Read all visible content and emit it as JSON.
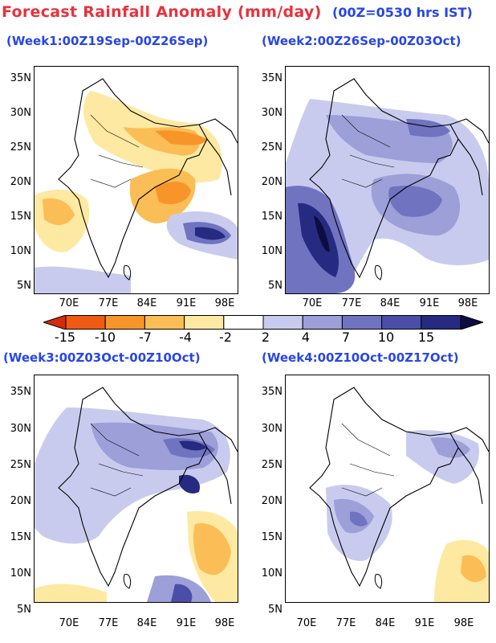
{
  "title": "Forecast Rainfall Anomaly (mm/day)",
  "subtitle": "(00Z=0530 hrs IST)",
  "lat_ticks": [
    "35N",
    "30N",
    "25N",
    "20N",
    "15N",
    "10N",
    "5N"
  ],
  "lon_ticks": [
    "70E",
    "77E",
    "84E",
    "91E",
    "98E"
  ],
  "panels": [
    {
      "id": "week1",
      "label": "(Week1:00Z19Sep-00Z26Sep)"
    },
    {
      "id": "week2",
      "label": "(Week2:00Z26Sep-00Z03Oct)"
    },
    {
      "id": "week3",
      "label": "(Week3:00Z03Oct-00Z10Oct)"
    },
    {
      "id": "week4",
      "label": "(Week4:00Z10Oct-00Z17Oct)"
    }
  ],
  "colorbar": {
    "labels": [
      "-15",
      "-10",
      "-7",
      "-4",
      "-2",
      "2",
      "4",
      "7",
      "10",
      "15"
    ],
    "colors": [
      "#d42a0e",
      "#f05a12",
      "#f7952a",
      "#fbbd55",
      "#fde9a2",
      "#ffffff",
      "#c9cbee",
      "#9c9fd8",
      "#6f73c0",
      "#4a4ea8",
      "#262a80",
      "#0c0e40"
    ]
  }
}
